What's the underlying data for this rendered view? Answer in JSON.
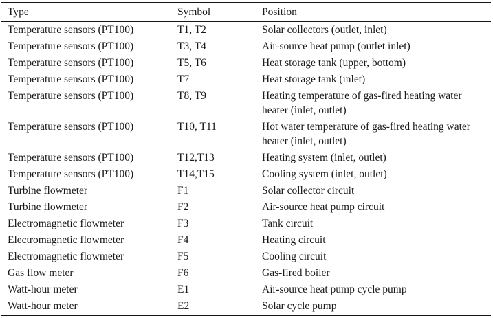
{
  "table": {
    "columns": [
      {
        "key": "type",
        "label": "Type"
      },
      {
        "key": "symbol",
        "label": "Symbol"
      },
      {
        "key": "position",
        "label": "Position"
      }
    ],
    "rows": [
      {
        "type": "Temperature sensors (PT100)",
        "symbol": "T1, T2",
        "position": "Solar collectors (outlet, inlet)"
      },
      {
        "type": "Temperature sensors (PT100)",
        "symbol": "T3, T4",
        "position": "Air-source heat pump (outlet inlet)"
      },
      {
        "type": "Temperature sensors (PT100)",
        "symbol": "T5, T6",
        "position": "Heat storage tank (upper, bottom)"
      },
      {
        "type": "Temperature sensors (PT100)",
        "symbol": "T7",
        "position": "Heat storage tank (inlet)"
      },
      {
        "type": "Temperature sensors (PT100)",
        "symbol": "T8, T9",
        "position": "Heating temperature of gas-fired heating water heater (inlet, outlet)"
      },
      {
        "type": "Temperature sensors (PT100)",
        "symbol": "T10, T11",
        "position": "Hot water temperature of gas-fired heating water heater (inlet, outlet)"
      },
      {
        "type": "Temperature sensors (PT100)",
        "symbol": "T12,T13",
        "position": "Heating system (inlet, outlet)"
      },
      {
        "type": "Temperature sensors (PT100)",
        "symbol": "T14,T15",
        "position": "Cooling system (inlet, outlet)"
      },
      {
        "type": "Turbine flowmeter",
        "symbol": "F1",
        "position": "Solar collector circuit"
      },
      {
        "type": "Turbine flowmeter",
        "symbol": "F2",
        "position": "Air-source heat pump circuit"
      },
      {
        "type": "Electromagnetic flowmeter",
        "symbol": "F3",
        "position": "Tank circuit"
      },
      {
        "type": "Electromagnetic flowmeter",
        "symbol": "F4",
        "position": "Heating circuit"
      },
      {
        "type": "Electromagnetic flowmeter",
        "symbol": "F5",
        "position": "Cooling circuit"
      },
      {
        "type": "Gas flow meter",
        "symbol": "F6",
        "position": "Gas-fired boiler"
      },
      {
        "type": "Watt-hour meter",
        "symbol": "E1",
        "position": "Air-source heat pump cycle pump"
      },
      {
        "type": "Watt-hour meter",
        "symbol": "E2",
        "position": "Solar cycle pump"
      }
    ]
  },
  "colors": {
    "text": "#1a1a1a",
    "background": "#ffffff",
    "rule": "#151515"
  }
}
